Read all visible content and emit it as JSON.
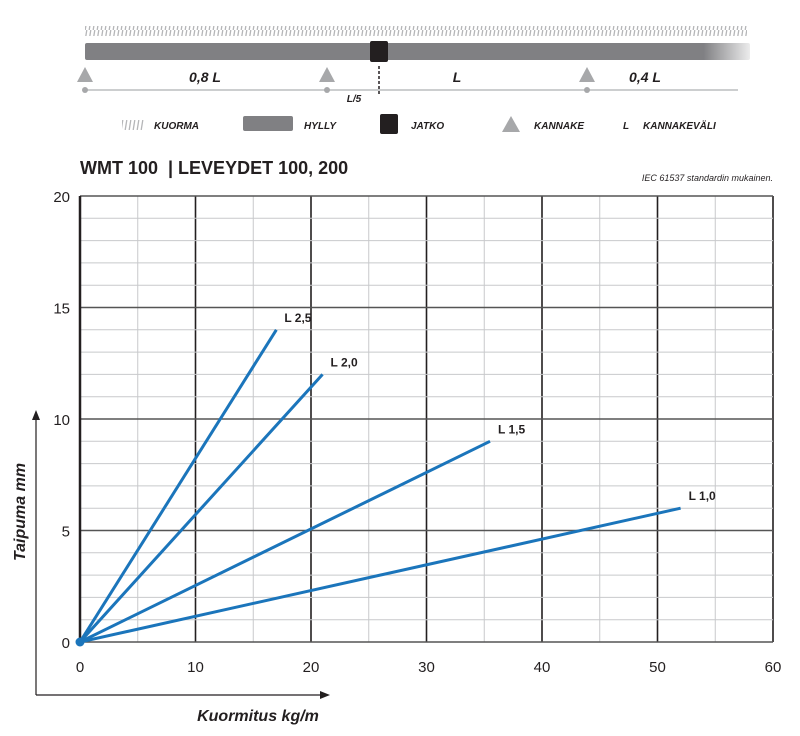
{
  "diagram": {
    "spans": [
      "0,8 L",
      "L",
      "0,4 L"
    ],
    "joint_offset_label": "L/5",
    "legend": [
      {
        "key": "load",
        "label": "KUORMA"
      },
      {
        "key": "shelf",
        "label": "HYLLY"
      },
      {
        "key": "joint",
        "label": "JATKO"
      },
      {
        "key": "bracket",
        "label": "KANNAKE"
      },
      {
        "key": "span",
        "symbol": "L",
        "label": "KANNAKEVÄLI"
      }
    ],
    "colors": {
      "shelf": "#808083",
      "joint": "#231f20",
      "bracket": "#a7a8aa",
      "load": "#b5b6b8"
    }
  },
  "header": {
    "title": "WMT 100  | LEVEYDET 100, 200",
    "note": "IEC 61537 standardin mukainen."
  },
  "chart_data": {
    "type": "line",
    "xlabel": "Kuormitus kg/m",
    "ylabel": "Taipuma mm",
    "xlim": [
      0,
      60
    ],
    "ylim": [
      0,
      20
    ],
    "xticks": [
      0,
      10,
      20,
      30,
      40,
      50,
      60
    ],
    "yticks": [
      0,
      5,
      10,
      15,
      20
    ],
    "grid": true,
    "line_color": "#1b75bb",
    "series": [
      {
        "name": "L 2,5",
        "points": [
          [
            0,
            0
          ],
          [
            17,
            14
          ]
        ]
      },
      {
        "name": "L 2,0",
        "points": [
          [
            0,
            0
          ],
          [
            21,
            12
          ]
        ]
      },
      {
        "name": "L 1,5",
        "points": [
          [
            0,
            0
          ],
          [
            35.5,
            9
          ]
        ]
      },
      {
        "name": "L 1,0",
        "points": [
          [
            0,
            0
          ],
          [
            52,
            6
          ]
        ]
      }
    ]
  }
}
